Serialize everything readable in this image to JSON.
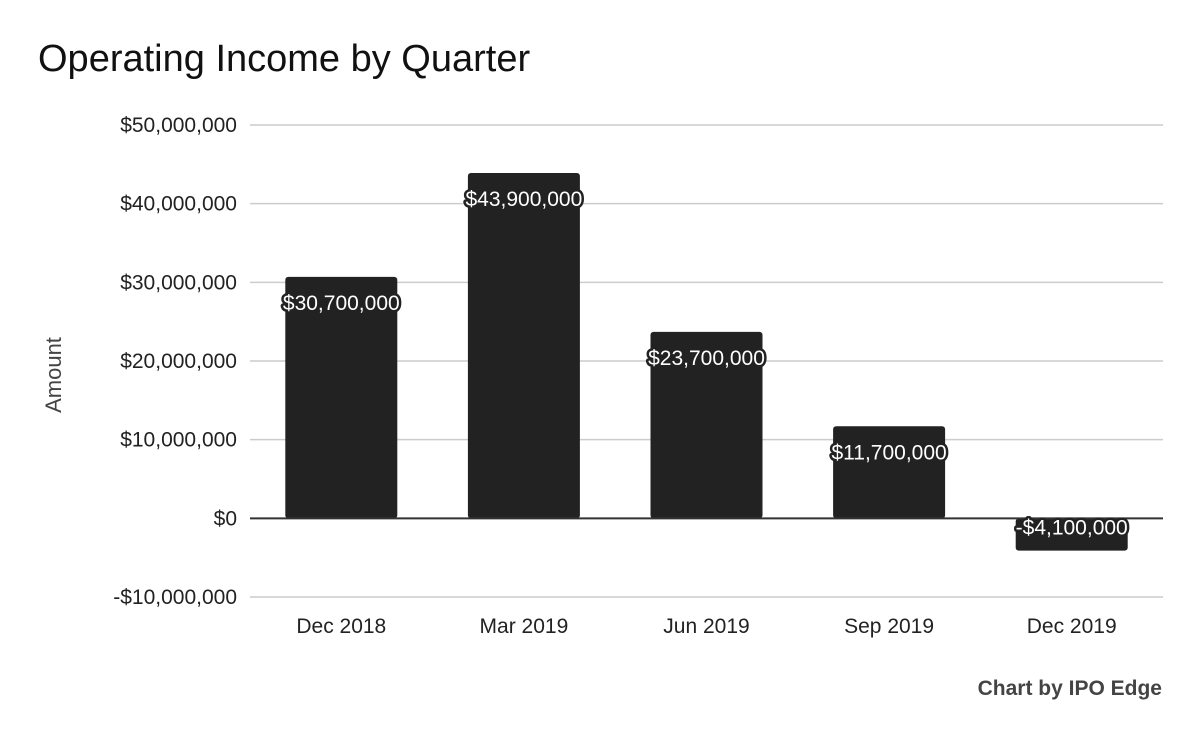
{
  "chart_data": {
    "type": "bar",
    "title": "Operating Income by Quarter",
    "ylabel": "Amount",
    "xlabel": "",
    "categories": [
      "Dec 2018",
      "Mar 2019",
      "Jun 2019",
      "Sep 2019",
      "Dec 2019"
    ],
    "values": [
      30700000,
      43900000,
      23700000,
      11700000,
      -4100000
    ],
    "value_labels": [
      "$30,700,000",
      "$43,900,000",
      "$23,700,000",
      "$11,700,000",
      "-$4,100,000"
    ],
    "ylim": [
      -10000000,
      50000000
    ],
    "yticks": [
      -10000000,
      0,
      10000000,
      20000000,
      30000000,
      40000000,
      50000000
    ],
    "ytick_labels": [
      "-$10,000,000",
      "$0",
      "$10,000,000",
      "$20,000,000",
      "$30,000,000",
      "$40,000,000",
      "$50,000,000"
    ],
    "grid": true,
    "legend": "none",
    "bar_color": "#222222",
    "gridline_color": "#cccccc",
    "zero_line_color": "#333333"
  },
  "credit": "Chart by IPO Edge"
}
